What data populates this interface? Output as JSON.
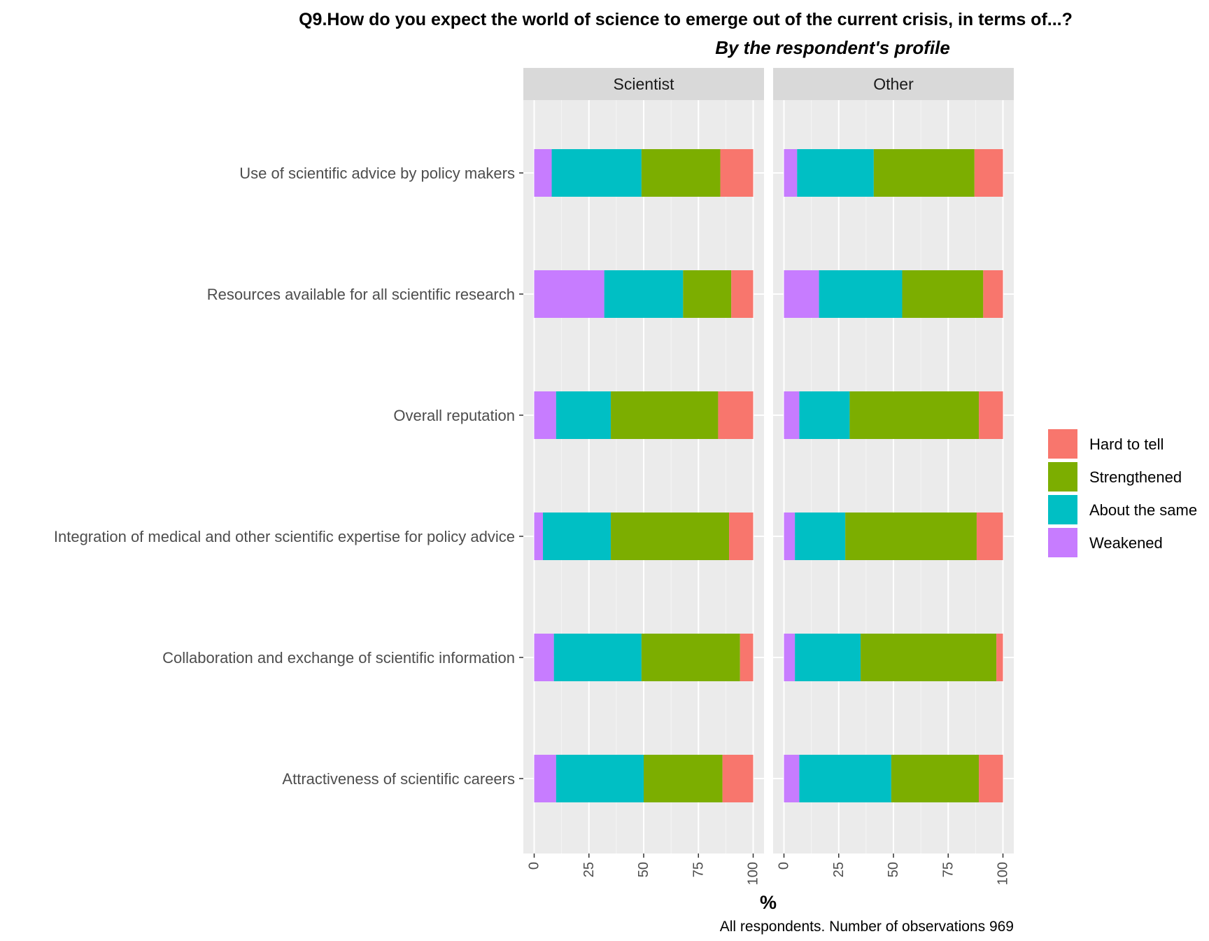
{
  "chart_data": {
    "type": "bar",
    "orientation": "horizontal",
    "stacked": true,
    "title": "Q9.How do you expect the world of science to emerge out of the current crisis, in terms of...?",
    "subtitle": "By the respondent's profile",
    "xlabel": "%",
    "ylabel": "",
    "xlim": [
      0,
      100
    ],
    "x_ticks": [
      "0",
      "25",
      "50",
      "75",
      "100"
    ],
    "caption": "All respondents. Number of observations 969",
    "grid": true,
    "legend_position": "right",
    "legend_order": [
      "Hard to tell",
      "Strengthened",
      "About the same",
      "Weakened"
    ],
    "colors": {
      "Weakened": "#C77CFF",
      "About the same": "#00BFC4",
      "Strengthened": "#7CAE00",
      "Hard to tell": "#F8766D"
    },
    "categories": [
      "Use of scientific advice by policy makers",
      "Resources available for all scientific research",
      "Overall reputation",
      "Integration of medical and other scientific expertise for policy advice",
      "Collaboration and exchange of scientific information",
      "Attractiveness of scientific careers"
    ],
    "panels": [
      {
        "name": "Scientist",
        "series": [
          {
            "name": "Weakened",
            "values": [
              8,
              32,
              10,
              4,
              9,
              10
            ]
          },
          {
            "name": "About the same",
            "values": [
              41,
              36,
              25,
              31,
              40,
              40
            ]
          },
          {
            "name": "Strengthened",
            "values": [
              36,
              22,
              49,
              54,
              45,
              36
            ]
          },
          {
            "name": "Hard to tell",
            "values": [
              15,
              10,
              16,
              11,
              6,
              14
            ]
          }
        ]
      },
      {
        "name": "Other",
        "series": [
          {
            "name": "Weakened",
            "values": [
              6,
              16,
              7,
              5,
              5,
              7
            ]
          },
          {
            "name": "About the same",
            "values": [
              35,
              38,
              23,
              23,
              30,
              42
            ]
          },
          {
            "name": "Strengthened",
            "values": [
              46,
              37,
              59,
              60,
              62,
              40
            ]
          },
          {
            "name": "Hard to tell",
            "values": [
              13,
              9,
              11,
              12,
              3,
              11
            ]
          }
        ]
      }
    ]
  }
}
